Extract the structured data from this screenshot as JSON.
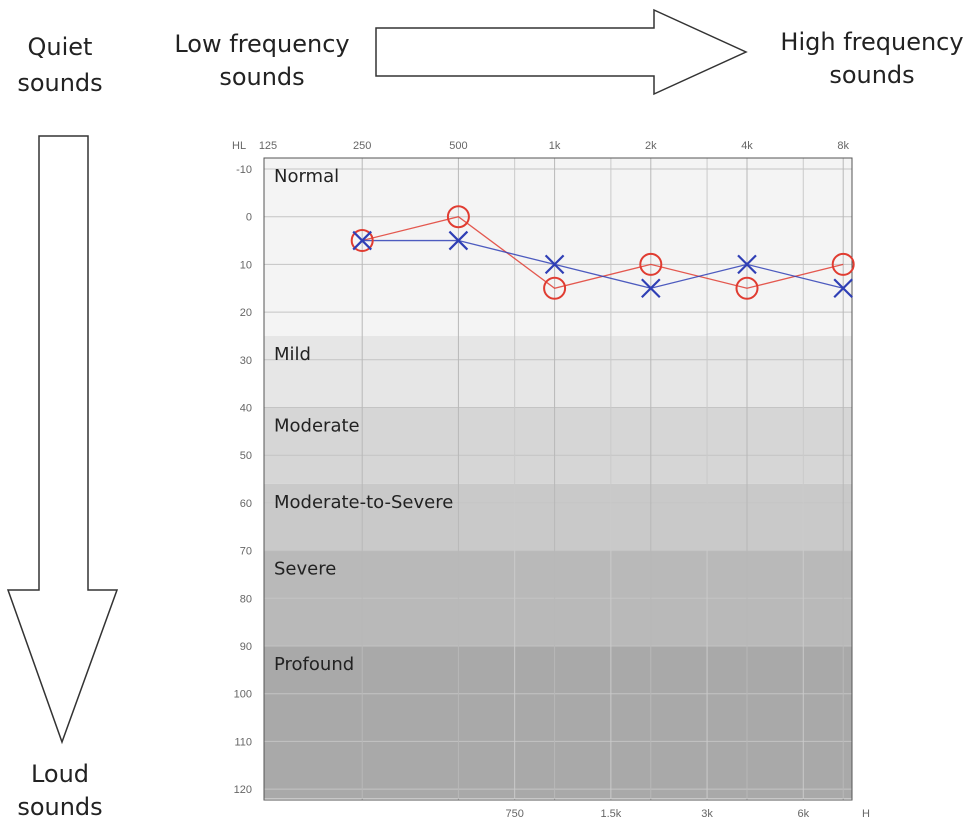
{
  "annotations": {
    "quiet": [
      "Quiet",
      "sounds"
    ],
    "loud": [
      "Loud",
      "sounds"
    ],
    "low_freq": [
      "Low frequency",
      "sounds"
    ],
    "high_freq": [
      "High frequency",
      "sounds"
    ]
  },
  "chart_data": {
    "type": "scatter",
    "top_axis_title": "HL",
    "bottom_axis_title": "H",
    "x_ticks_top": [
      "125",
      "250",
      "500",
      "1k",
      "2k",
      "4k",
      "8k"
    ],
    "x_ticks_bottom": [
      "750",
      "1.5k",
      "3k",
      "6k"
    ],
    "y_ticks": [
      -10,
      0,
      10,
      20,
      30,
      40,
      50,
      60,
      70,
      80,
      90,
      100,
      110,
      120
    ],
    "y_tick_labels": [
      "-10",
      "0",
      "10",
      "20",
      "30",
      "40",
      "50",
      "60",
      "70",
      "80",
      "90",
      "100",
      "110",
      "120"
    ],
    "ylim": [
      -10,
      122
    ],
    "y_inverted": true,
    "x_scale": "log2",
    "xlim_hz": [
      125,
      9000
    ],
    "grid": true,
    "bands": [
      {
        "label": "Normal",
        "from": -10,
        "to": 25,
        "color": "#f4f4f4"
      },
      {
        "label": "Mild",
        "from": 25,
        "to": 40,
        "color": "#e6e6e6"
      },
      {
        "label": "Moderate",
        "from": 40,
        "to": 56,
        "color": "#d6d6d6"
      },
      {
        "label": "Moderate-to-Severe",
        "from": 56,
        "to": 70,
        "color": "#c9c9c9"
      },
      {
        "label": "Severe",
        "from": 70,
        "to": 90,
        "color": "#b9b9b9"
      },
      {
        "label": "Profound",
        "from": 90,
        "to": 122,
        "color": "#a9a9a9"
      }
    ],
    "series": [
      {
        "marker": "circle",
        "color": "#e03c31",
        "x": [
          250,
          500,
          1000,
          2000,
          4000,
          8000
        ],
        "values": [
          5,
          0,
          15,
          10,
          15,
          10
        ]
      },
      {
        "marker": "cross",
        "color": "#2f3fb5",
        "x": [
          250,
          500,
          1000,
          2000,
          4000,
          8000
        ],
        "values": [
          5,
          5,
          10,
          15,
          10,
          15
        ]
      }
    ]
  }
}
